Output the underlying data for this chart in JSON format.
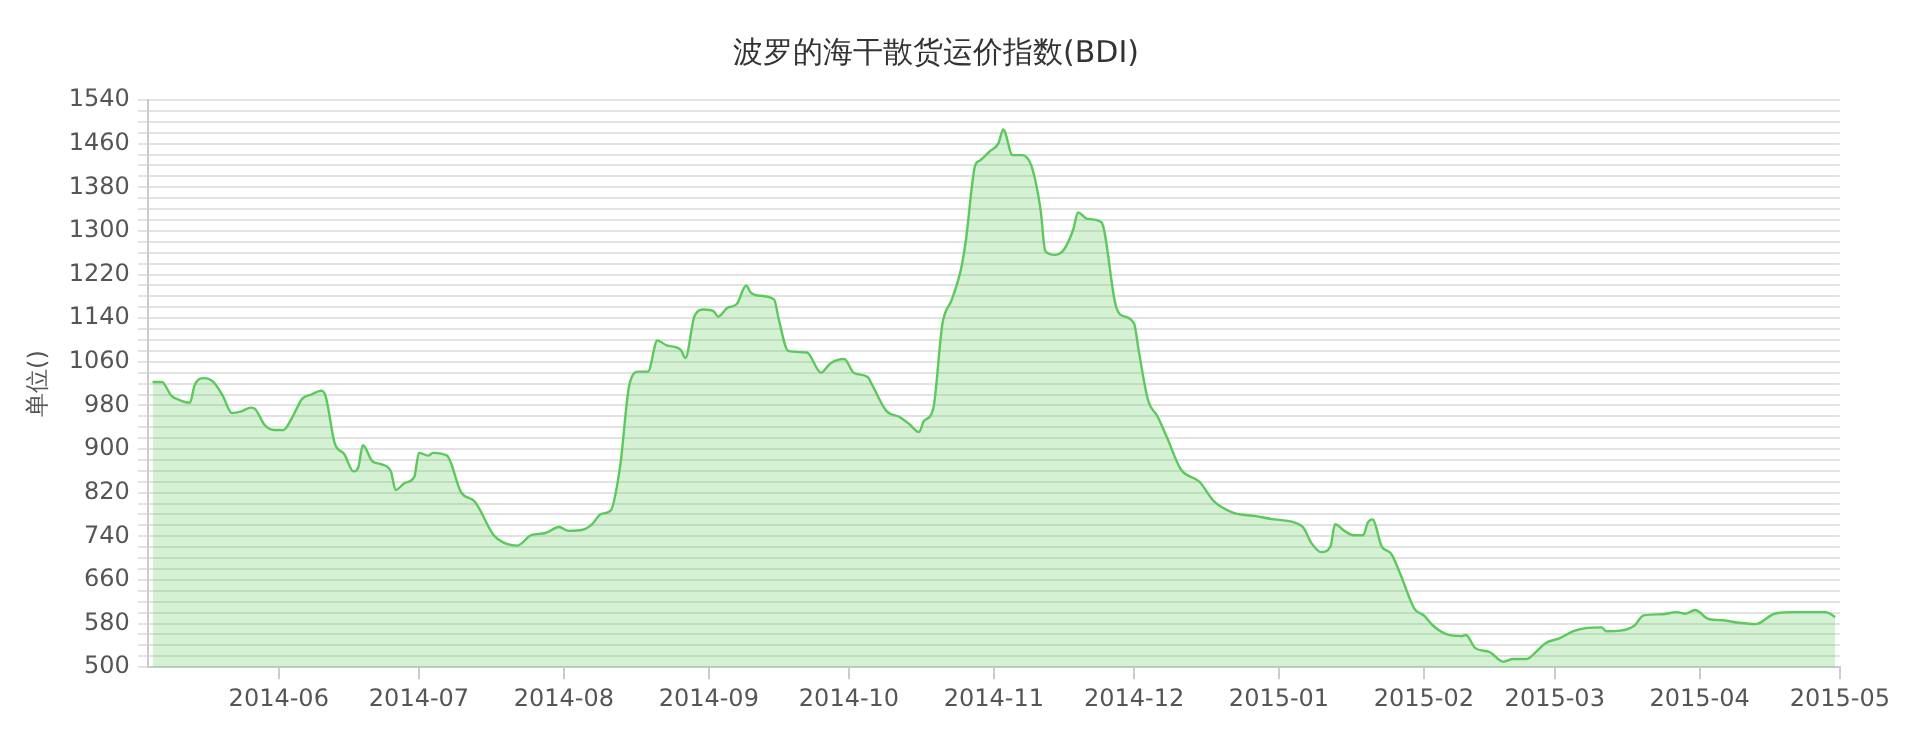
{
  "chart_data": {
    "type": "area",
    "title": "波罗的海干散货运价指数(BDI)",
    "ylabel": "单位()",
    "x": [
      "2014-05-05",
      "2014-05-07",
      "2014-05-09",
      "2014-05-11",
      "2014-05-13",
      "2014-05-14",
      "2014-05-16",
      "2014-05-18",
      "2014-05-20",
      "2014-05-22",
      "2014-05-24",
      "2014-05-26",
      "2014-05-27",
      "2014-05-29",
      "2014-05-31",
      "2014-06-02",
      "2014-06-04",
      "2014-06-06",
      "2014-06-08",
      "2014-06-10",
      "2014-06-11",
      "2014-06-13",
      "2014-06-15",
      "2014-06-17",
      "2014-06-18",
      "2014-06-19",
      "2014-06-21",
      "2014-06-23",
      "2014-06-25",
      "2014-06-26",
      "2014-06-28",
      "2014-06-30",
      "2014-07-01",
      "2014-07-03",
      "2014-07-04",
      "2014-07-07",
      "2014-07-10",
      "2014-07-13",
      "2014-07-17",
      "2014-07-19",
      "2014-07-22",
      "2014-07-25",
      "2014-07-28",
      "2014-07-31",
      "2014-08-02",
      "2014-08-05",
      "2014-08-07",
      "2014-08-09",
      "2014-08-11",
      "2014-08-13",
      "2014-08-15",
      "2014-08-17",
      "2014-08-19",
      "2014-08-21",
      "2014-08-23",
      "2014-08-26",
      "2014-08-27",
      "2014-08-29",
      "2014-08-31",
      "2014-09-02",
      "2014-09-03",
      "2014-09-05",
      "2014-09-07",
      "2014-09-09",
      "2014-09-10",
      "2014-09-12",
      "2014-09-15",
      "2014-09-16",
      "2014-09-18",
      "2014-09-22",
      "2014-09-25",
      "2014-09-27",
      "2014-09-30",
      "2014-10-02",
      "2014-10-05",
      "2014-10-06",
      "2014-10-09",
      "2014-10-12",
      "2014-10-14",
      "2014-10-16",
      "2014-10-17",
      "2014-10-19",
      "2014-10-21",
      "2014-10-23",
      "2014-10-25",
      "2014-10-26",
      "2014-10-28",
      "2014-10-29",
      "2014-10-31",
      "2014-11-02",
      "2014-11-03",
      "2014-11-05",
      "2014-11-07",
      "2014-11-09",
      "2014-11-11",
      "2014-11-12",
      "2014-11-14",
      "2014-11-16",
      "2014-11-18",
      "2014-11-19",
      "2014-11-21",
      "2014-11-24",
      "2014-11-27",
      "2014-11-28",
      "2014-12-01",
      "2014-12-02",
      "2014-12-04",
      "2014-12-06",
      "2014-12-08",
      "2014-12-11",
      "2014-12-15",
      "2014-12-18",
      "2014-12-22",
      "2014-12-27",
      "2014-12-31",
      "2015-01-06",
      "2015-01-08",
      "2015-01-10",
      "2015-01-12",
      "2015-01-13",
      "2015-01-15",
      "2015-01-17",
      "2015-01-19",
      "2015-01-20",
      "2015-01-21",
      "2015-01-23",
      "2015-01-25",
      "2015-01-27",
      "2015-01-30",
      "2015-02-01",
      "2015-02-03",
      "2015-02-06",
      "2015-02-09",
      "2015-02-10",
      "2015-02-12",
      "2015-02-15",
      "2015-02-18",
      "2015-02-20",
      "2015-02-23",
      "2015-02-25",
      "2015-02-27",
      "2015-03-02",
      "2015-03-05",
      "2015-03-08",
      "2015-03-11",
      "2015-03-12",
      "2015-03-15",
      "2015-03-18",
      "2015-03-20",
      "2015-03-24",
      "2015-03-27",
      "2015-03-29",
      "2015-03-31",
      "2015-04-03",
      "2015-04-06",
      "2015-04-09",
      "2015-04-13",
      "2015-04-17",
      "2015-04-21",
      "2015-04-24",
      "2015-04-28",
      "2015-04-30"
    ],
    "series": [
      {
        "color": "#5cc95c",
        "values": [
          1023,
          1023,
          998,
          989,
          985,
          1017,
          1030,
          1023,
          998,
          966,
          969,
          976,
          973,
          944,
          935,
          935,
          960,
          992,
          1000,
          1007,
          998,
          910,
          891,
          859,
          866,
          907,
          878,
          872,
          859,
          825,
          838,
          849,
          893,
          888,
          893,
          888,
          821,
          803,
          742,
          729,
          723,
          742,
          746,
          757,
          750,
          752,
          762,
          781,
          787,
          866,
          1017,
          1042,
          1042,
          1099,
          1090,
          1082,
          1067,
          1145,
          1156,
          1153,
          1143,
          1159,
          1166,
          1200,
          1187,
          1181,
          1174,
          1137,
          1080,
          1077,
          1040,
          1057,
          1065,
          1040,
          1032,
          1017,
          970,
          958,
          945,
          931,
          951,
          973,
          1130,
          1174,
          1231,
          1282,
          1420,
          1429,
          1445,
          1461,
          1486,
          1439,
          1439,
          1420,
          1338,
          1263,
          1256,
          1266,
          1303,
          1334,
          1322,
          1316,
          1166,
          1147,
          1130,
          1080,
          989,
          960,
          922,
          863,
          840,
          805,
          784,
          777,
          771,
          758,
          727,
          711,
          721,
          762,
          750,
          742,
          742,
          765,
          771,
          721,
          708,
          670,
          607,
          595,
          576,
          560,
          557,
          559,
          535,
          528,
          510,
          515,
          515,
          528,
          544,
          553,
          566,
          572,
          573,
          566,
          567,
          576,
          595,
          597,
          601,
          598,
          605,
          588,
          586,
          582,
          579,
          598,
          601,
          601,
          601,
          592
        ]
      }
    ],
    "xlim": [
      "2014-05-04",
      "2015-05-01"
    ],
    "xticks": [
      "2014-06",
      "2014-07",
      "2014-08",
      "2014-09",
      "2014-10",
      "2014-11",
      "2014-12",
      "2015-01",
      "2015-02",
      "2015-03",
      "2015-04",
      "2015-05"
    ],
    "ylim": [
      500,
      1540
    ],
    "yticks": [
      500,
      {
        "value": 520,
        "label": null
      },
      {
        "value": 540,
        "label": null
      },
      {
        "value": 560,
        "label": null
      },
      580,
      {
        "value": 600,
        "label": null
      },
      {
        "value": 620,
        "label": null
      },
      {
        "value": 640,
        "label": null
      },
      660,
      {
        "value": 680,
        "label": null
      },
      {
        "value": 700,
        "label": null
      },
      {
        "value": 720,
        "label": null
      },
      740,
      {
        "value": 760,
        "label": null
      },
      {
        "value": 780,
        "label": null
      },
      {
        "value": 800,
        "label": null
      },
      820,
      {
        "value": 840,
        "label": null
      },
      {
        "value": 860,
        "label": null
      },
      {
        "value": 880,
        "label": null
      },
      900,
      {
        "value": 920,
        "label": null
      },
      {
        "value": 940,
        "label": null
      },
      {
        "value": 960,
        "label": null
      },
      980,
      {
        "value": 1000,
        "label": null
      },
      {
        "value": 1020,
        "label": null
      },
      {
        "value": 1040,
        "label": null
      },
      1060,
      {
        "value": 1080,
        "label": null
      },
      {
        "value": 1100,
        "label": null
      },
      {
        "value": 1120,
        "label": null
      },
      1140,
      {
        "value": 1160,
        "label": null
      },
      {
        "value": 1180,
        "label": null
      },
      {
        "value": 1200,
        "label": null
      },
      1220,
      {
        "value": 1240,
        "label": null
      },
      {
        "value": 1260,
        "label": null
      },
      {
        "value": 1280,
        "label": null
      },
      1300,
      {
        "value": 1320,
        "label": null
      },
      {
        "value": 1340,
        "label": null
      },
      {
        "value": 1360,
        "label": null
      },
      1380,
      {
        "value": 1400,
        "label": null
      },
      {
        "value": 1420,
        "label": null
      },
      {
        "value": 1440,
        "label": null
      },
      1460,
      {
        "value": 1480,
        "label": null
      },
      {
        "value": 1500,
        "label": null
      },
      {
        "value": 1520,
        "label": null
      },
      1540
    ],
    "grid": "y",
    "legend": false,
    "marker": "none",
    "line_style": "solid"
  }
}
